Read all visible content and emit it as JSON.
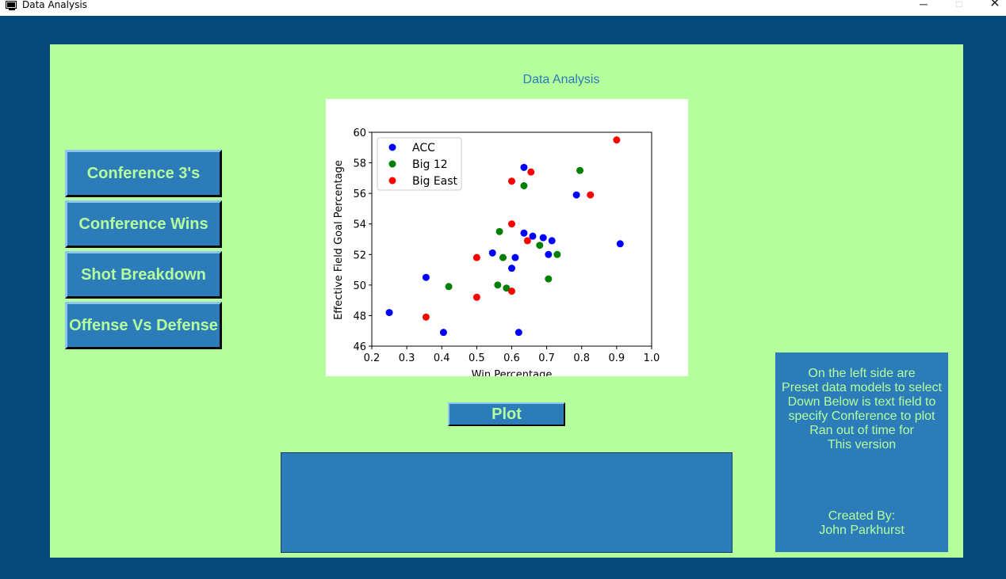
{
  "window": {
    "title": "Data Analysis",
    "controls": {
      "minimize": "─",
      "maximize": "□",
      "close": "✕"
    }
  },
  "heading": "Data Analysis",
  "sidebar": {
    "buttons": [
      {
        "label": "Conference 3's"
      },
      {
        "label": "Conference Wins"
      },
      {
        "label": "Shot Breakdown"
      },
      {
        "label": "Offense Vs Defense"
      }
    ]
  },
  "plot_button": {
    "label": "Plot"
  },
  "text_field": {
    "value": ""
  },
  "info": {
    "lines": [
      "On the left side are",
      "Preset data models to select",
      "Down Below is text field to",
      "specify Conference to plot",
      "Ran out of time for",
      "This version"
    ],
    "credits": [
      "Created By:",
      "John Parkhurst"
    ]
  },
  "colors": {
    "window_bg": "#054a7a",
    "panel_bg": "#b5ff9c",
    "button_bg": "#2b7cb8",
    "button_text": "#b5ff9c",
    "heading_text": "#2b7cb8"
  },
  "chart_data": {
    "type": "scatter",
    "xlabel": "Win Percentage",
    "ylabel": "Effective Field Goal Percentage",
    "xlim": [
      0.2,
      1.0
    ],
    "ylim": [
      46,
      60
    ],
    "xticks": [
      "0.2",
      "0.3",
      "0.4",
      "0.5",
      "0.6",
      "0.7",
      "0.8",
      "0.9",
      "1.0"
    ],
    "yticks": [
      "46",
      "48",
      "50",
      "52",
      "54",
      "56",
      "58",
      "60"
    ],
    "legend_position": "top-left",
    "grid": false,
    "series": [
      {
        "name": "ACC",
        "color": "#0000ff",
        "points": [
          [
            0.25,
            48.2
          ],
          [
            0.355,
            50.5
          ],
          [
            0.405,
            46.9
          ],
          [
            0.545,
            52.1
          ],
          [
            0.6,
            51.1
          ],
          [
            0.61,
            51.8
          ],
          [
            0.62,
            46.9
          ],
          [
            0.635,
            57.7
          ],
          [
            0.635,
            53.4
          ],
          [
            0.66,
            53.2
          ],
          [
            0.69,
            53.1
          ],
          [
            0.705,
            52.0
          ],
          [
            0.715,
            52.9
          ],
          [
            0.785,
            55.9
          ],
          [
            0.91,
            52.7
          ]
        ]
      },
      {
        "name": "Big 12",
        "color": "#008000",
        "points": [
          [
            0.42,
            49.9
          ],
          [
            0.56,
            50.0
          ],
          [
            0.565,
            53.5
          ],
          [
            0.575,
            51.8
          ],
          [
            0.585,
            49.8
          ],
          [
            0.635,
            56.5
          ],
          [
            0.68,
            52.6
          ],
          [
            0.705,
            50.4
          ],
          [
            0.73,
            52.0
          ],
          [
            0.795,
            57.5
          ]
        ]
      },
      {
        "name": "Big East",
        "color": "#ff0000",
        "points": [
          [
            0.355,
            47.9
          ],
          [
            0.5,
            51.8
          ],
          [
            0.5,
            49.2
          ],
          [
            0.6,
            56.8
          ],
          [
            0.6,
            54.0
          ],
          [
            0.6,
            49.6
          ],
          [
            0.645,
            52.9
          ],
          [
            0.655,
            57.4
          ],
          [
            0.825,
            55.9
          ],
          [
            0.9,
            59.5
          ]
        ]
      }
    ]
  }
}
